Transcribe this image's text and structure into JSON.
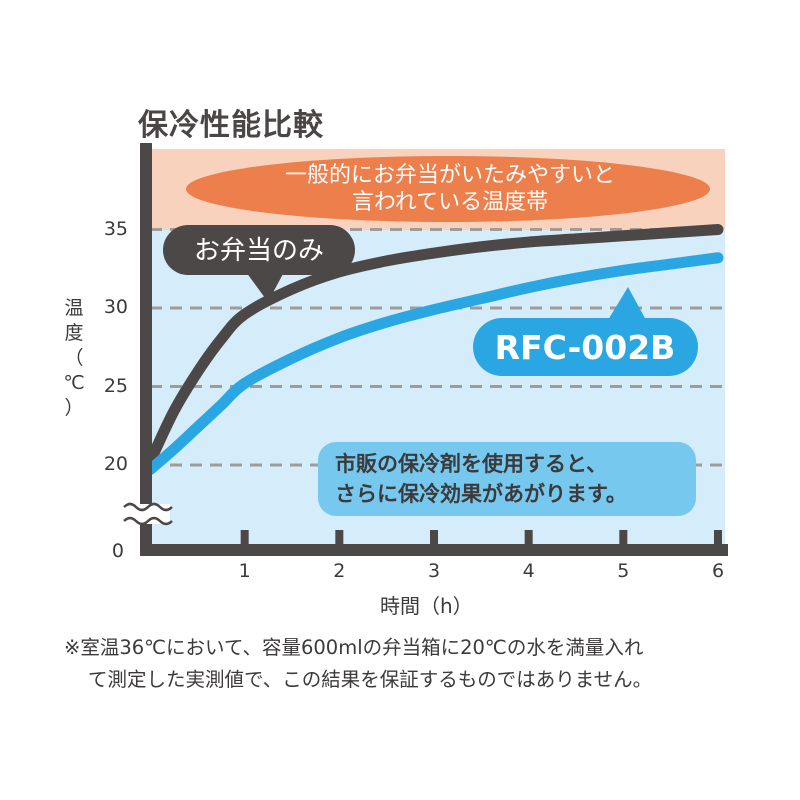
{
  "title": "保冷性能比較",
  "ylabel_lines": [
    "温",
    "度",
    "（",
    "℃",
    "）"
  ],
  "xlabel": "時間（h）",
  "note": {
    "line1": "※室温36℃において、容量600mlの弁当箱に20℃の水を満量入れ",
    "line2": "て測定した実測値で、この結果を保証するものではありません。"
  },
  "annotations": {
    "danger_zone_line1": "一般的にお弁当がいたみやすいと",
    "danger_zone_line2": "言われている温度帯",
    "lunch_only_label": "お弁当のみ",
    "product_label": "RFC-002B",
    "tip_line1": "市販の保冷剤を使用すると、",
    "tip_line2": "さらに保冷効果があがります。"
  },
  "colors": {
    "danger_zone": "#f8d2bd",
    "plot_bg": "#d5ecfa",
    "axis": "#4d4848",
    "lunch_only_line": "#4d4848",
    "product_line": "#2aa7e3",
    "danger_oval": "#ec7f4c",
    "tip_box": "#77c8ef",
    "grid": "#a19b98"
  },
  "chart_data": {
    "type": "line",
    "title": "保冷性能比較",
    "xlabel": "時間（h）",
    "ylabel": "温度（℃）",
    "xlim": [
      0,
      6
    ],
    "ylim": [
      0,
      40
    ],
    "x_ticks": [
      1,
      2,
      3,
      4,
      5,
      6
    ],
    "y_ticks": [
      20,
      25,
      30,
      35
    ],
    "y_origin_label": "0",
    "y_axis_break": true,
    "grid": "dashed horizontal at 20, 25, 30, 35",
    "shaded_band": {
      "from": 35,
      "to": 40,
      "label": "一般的にお弁当がいたみやすいと言われている温度帯"
    },
    "series": [
      {
        "name": "お弁当のみ",
        "x": [
          0,
          0.25,
          0.5,
          0.75,
          1,
          1.5,
          2,
          2.5,
          3,
          3.5,
          4,
          4.5,
          5,
          5.5,
          6
        ],
        "values": [
          20.2,
          23.4,
          25.9,
          28.0,
          29.6,
          31.2,
          32.3,
          33.0,
          33.5,
          33.9,
          34.2,
          34.4,
          34.6,
          34.8,
          35.0
        ]
      },
      {
        "name": "RFC-002B",
        "x": [
          0,
          0.25,
          0.5,
          0.75,
          1,
          1.5,
          2,
          2.5,
          3,
          3.5,
          4,
          4.5,
          5,
          5.5,
          6
        ],
        "values": [
          19.7,
          21.0,
          22.4,
          23.8,
          25.2,
          26.8,
          28.1,
          29.1,
          29.9,
          30.6,
          31.3,
          31.9,
          32.4,
          32.8,
          33.2
        ]
      }
    ]
  }
}
